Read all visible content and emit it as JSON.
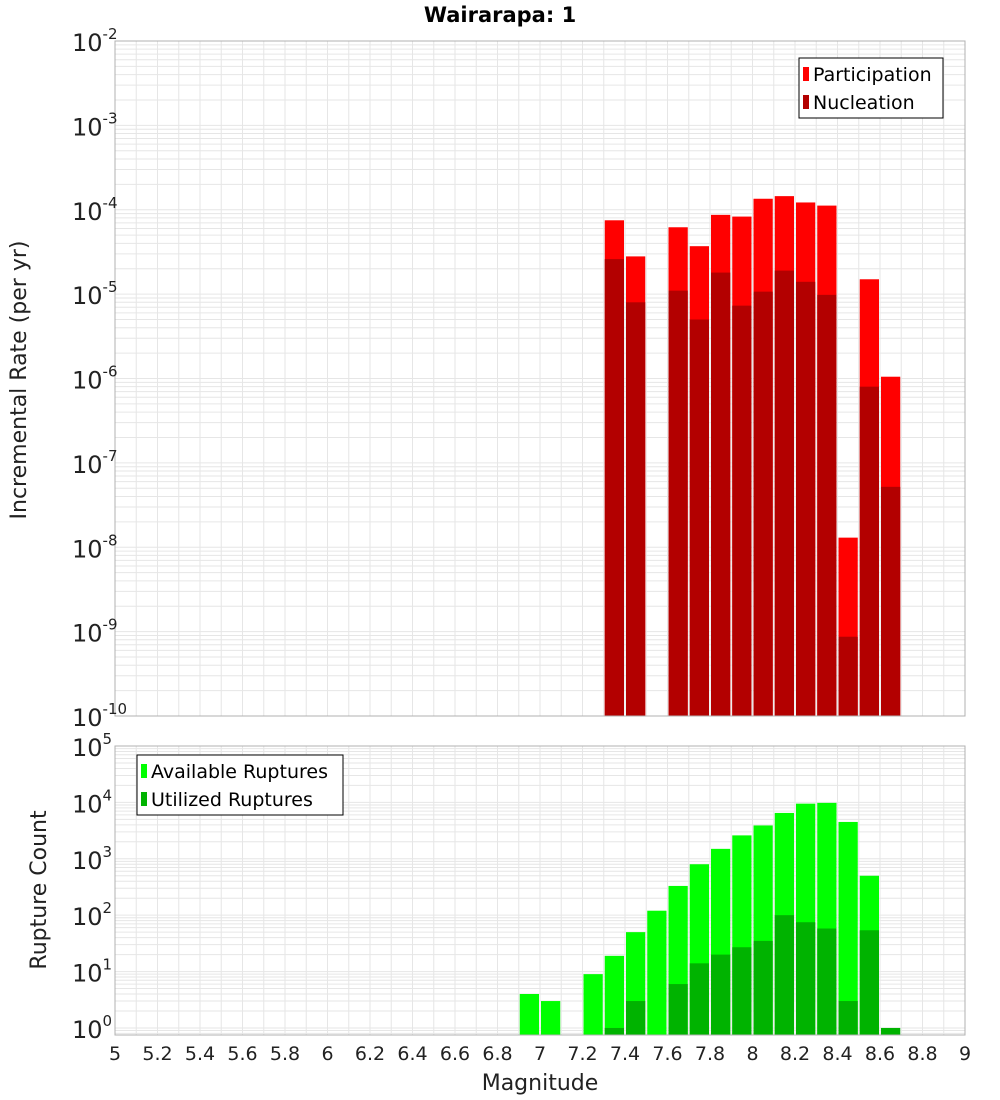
{
  "title": "Wairarapa: 1",
  "colors": {
    "participation": "#ff0000",
    "nucleation": "#b30000",
    "available": "#00ff00",
    "utilized": "#00b300"
  },
  "chart_data": [
    {
      "type": "bar",
      "scale": "log",
      "ylabel": "Incremental Rate (per yr)",
      "xlabel": "",
      "xlim": [
        5,
        9
      ],
      "ylim": [
        1e-10,
        0.01
      ],
      "legend_position": "top-right",
      "y_ticks": [
        {
          "base": "10",
          "exp": "-10"
        },
        {
          "base": "10",
          "exp": "-9"
        },
        {
          "base": "10",
          "exp": "-8"
        },
        {
          "base": "10",
          "exp": "-7"
        },
        {
          "base": "10",
          "exp": "-6"
        },
        {
          "base": "10",
          "exp": "-5"
        },
        {
          "base": "10",
          "exp": "-4"
        },
        {
          "base": "10",
          "exp": "-3"
        },
        {
          "base": "10",
          "exp": "-2"
        }
      ],
      "bin_width": 0.1,
      "series": [
        {
          "name": "Participation",
          "color": "#ff0000",
          "x": [
            7.35,
            7.45,
            7.65,
            7.75,
            7.85,
            7.95,
            8.05,
            8.15,
            8.25,
            8.35,
            8.45,
            8.55,
            8.65
          ],
          "values": [
            7.5e-05,
            2.8e-05,
            6.2e-05,
            3.7e-05,
            8.7e-05,
            8.3e-05,
            0.000135,
            0.000145,
            0.000122,
            0.000112,
            1.3e-08,
            1.5e-05,
            1.05e-06
          ]
        },
        {
          "name": "Nucleation",
          "color": "#b30000",
          "x": [
            7.35,
            7.45,
            7.65,
            7.75,
            7.85,
            7.95,
            8.05,
            8.15,
            8.25,
            8.35,
            8.45,
            8.55,
            8.65
          ],
          "values": [
            2.6e-05,
            8e-06,
            1.1e-05,
            5e-06,
            1.8e-05,
            7.3e-06,
            1.07e-05,
            1.9e-05,
            1.4e-05,
            9.8e-06,
            8.7e-10,
            8e-07,
            5.2e-08
          ]
        }
      ]
    },
    {
      "type": "bar",
      "scale": "log",
      "ylabel": "Rupture Count",
      "xlabel": "Magnitude",
      "xlim": [
        5,
        9
      ],
      "ylim": [
        0.75,
        100000.0
      ],
      "legend_position": "top-left",
      "x_ticks": [
        "5",
        "5.2",
        "5.4",
        "5.6",
        "5.8",
        "6",
        "6.2",
        "6.4",
        "6.6",
        "6.8",
        "7",
        "7.2",
        "7.4",
        "7.6",
        "7.8",
        "8",
        "8.2",
        "8.4",
        "8.6",
        "8.8",
        "9"
      ],
      "y_ticks": [
        {
          "base": "10",
          "exp": "0"
        },
        {
          "base": "10",
          "exp": "1"
        },
        {
          "base": "10",
          "exp": "2"
        },
        {
          "base": "10",
          "exp": "3"
        },
        {
          "base": "10",
          "exp": "4"
        },
        {
          "base": "10",
          "exp": "5"
        }
      ],
      "bin_width": 0.1,
      "series": [
        {
          "name": "Available Ruptures",
          "color": "#00ff00",
          "x": [
            6.95,
            7.05,
            7.25,
            7.35,
            7.45,
            7.55,
            7.65,
            7.75,
            7.85,
            7.95,
            8.05,
            8.15,
            8.25,
            8.35,
            8.45,
            8.55
          ],
          "values": [
            4,
            3,
            9,
            19,
            50,
            120,
            330,
            800,
            1500,
            2600,
            3900,
            6500,
            9500,
            9800,
            4500,
            500
          ]
        },
        {
          "name": "Utilized Ruptures",
          "color": "#00b300",
          "x": [
            7.35,
            7.45,
            7.65,
            7.75,
            7.85,
            7.95,
            8.05,
            8.15,
            8.25,
            8.35,
            8.45,
            8.55,
            8.65
          ],
          "values": [
            1,
            3,
            6,
            14,
            20,
            27,
            35,
            100,
            75,
            58,
            3,
            54,
            1
          ]
        }
      ]
    }
  ]
}
